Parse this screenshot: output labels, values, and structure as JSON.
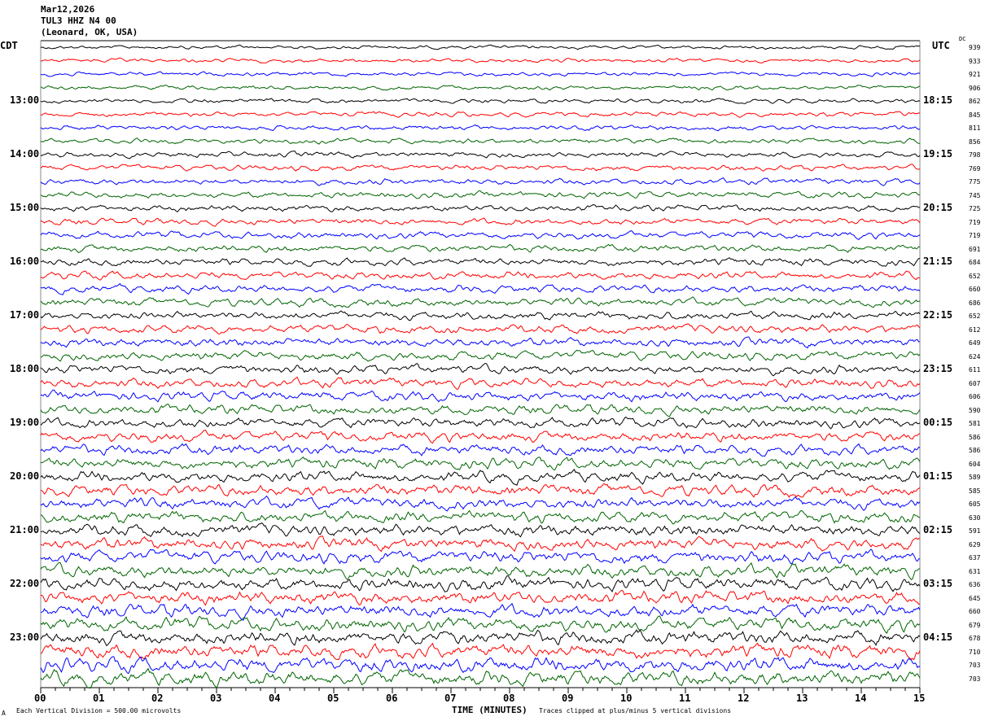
{
  "header": {
    "date": "Mar12,2026",
    "station": "TUL3 HHZ N4 00",
    "location": "(Leonard, OK, USA)"
  },
  "left_tz": "CDT",
  "right_tz": "UTC",
  "dc_label": "DC",
  "footer": {
    "scale": "Each Vertical Division =  500.00 microvolts",
    "clip": "Traces clipped at plus/minus 5 vertical divisions",
    "corner": "A"
  },
  "chart_data": {
    "type": "line",
    "title": "",
    "xlabel": "TIME (MINUTES)",
    "xlim": [
      0,
      15
    ],
    "x_ticks": [
      "00",
      "01",
      "02",
      "03",
      "04",
      "05",
      "06",
      "07",
      "08",
      "09",
      "10",
      "11",
      "12",
      "13",
      "14",
      "15"
    ],
    "trace_colors": [
      "#000000",
      "#ff0000",
      "#0000ff",
      "#006400"
    ],
    "rows_per_hour": 4,
    "left_hour_labels": [
      "13:00",
      "14:00",
      "15:00",
      "16:00",
      "17:00",
      "18:00",
      "19:00",
      "20:00",
      "21:00",
      "22:00",
      "23:00"
    ],
    "right_hour_labels": [
      "18:15",
      "19:15",
      "20:15",
      "21:15",
      "22:15",
      "23:15",
      "00:15",
      "01:15",
      "02:15",
      "03:15",
      "04:15"
    ],
    "dc_offsets": [
      939,
      933,
      921,
      906,
      862,
      845,
      811,
      856,
      798,
      769,
      775,
      745,
      725,
      719,
      719,
      691,
      684,
      652,
      660,
      686,
      652,
      612,
      649,
      624,
      611,
      607,
      606,
      590,
      581,
      586,
      586,
      604,
      589,
      585,
      605,
      630,
      591,
      629,
      637,
      631,
      636,
      645,
      660,
      679,
      678,
      710,
      703,
      703
    ]
  }
}
